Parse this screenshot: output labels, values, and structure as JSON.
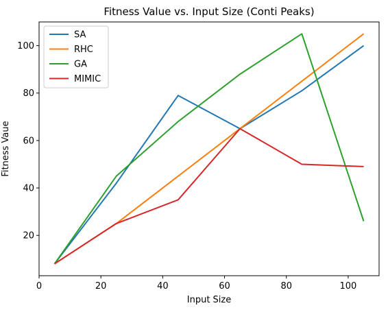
{
  "chart_data": {
    "type": "line",
    "title": "Fitness Value vs. Input Size (Conti Peaks)",
    "xlabel": "Input Size",
    "ylabel": "Fitness Vaue",
    "xlim": [
      0,
      110
    ],
    "ylim": [
      3,
      110
    ],
    "xticks": [
      0,
      20,
      40,
      60,
      80,
      100
    ],
    "yticks": [
      20,
      40,
      60,
      80,
      100
    ],
    "grid": false,
    "legend_position": "top-left",
    "x": [
      5,
      25,
      45,
      65,
      85,
      105
    ],
    "series": [
      {
        "name": "SA",
        "color": "#1f77b4",
        "values": [
          8,
          42,
          79,
          65,
          81,
          100
        ]
      },
      {
        "name": "RHC",
        "color": "#ff7f0e",
        "values": [
          8,
          25,
          45,
          65,
          85,
          105
        ]
      },
      {
        "name": "GA",
        "color": "#2ca02c",
        "values": [
          8,
          45,
          68,
          88,
          105,
          26
        ]
      },
      {
        "name": "MIMIC",
        "color": "#d62728",
        "values": [
          8,
          25,
          35,
          65,
          50,
          49
        ]
      }
    ]
  }
}
